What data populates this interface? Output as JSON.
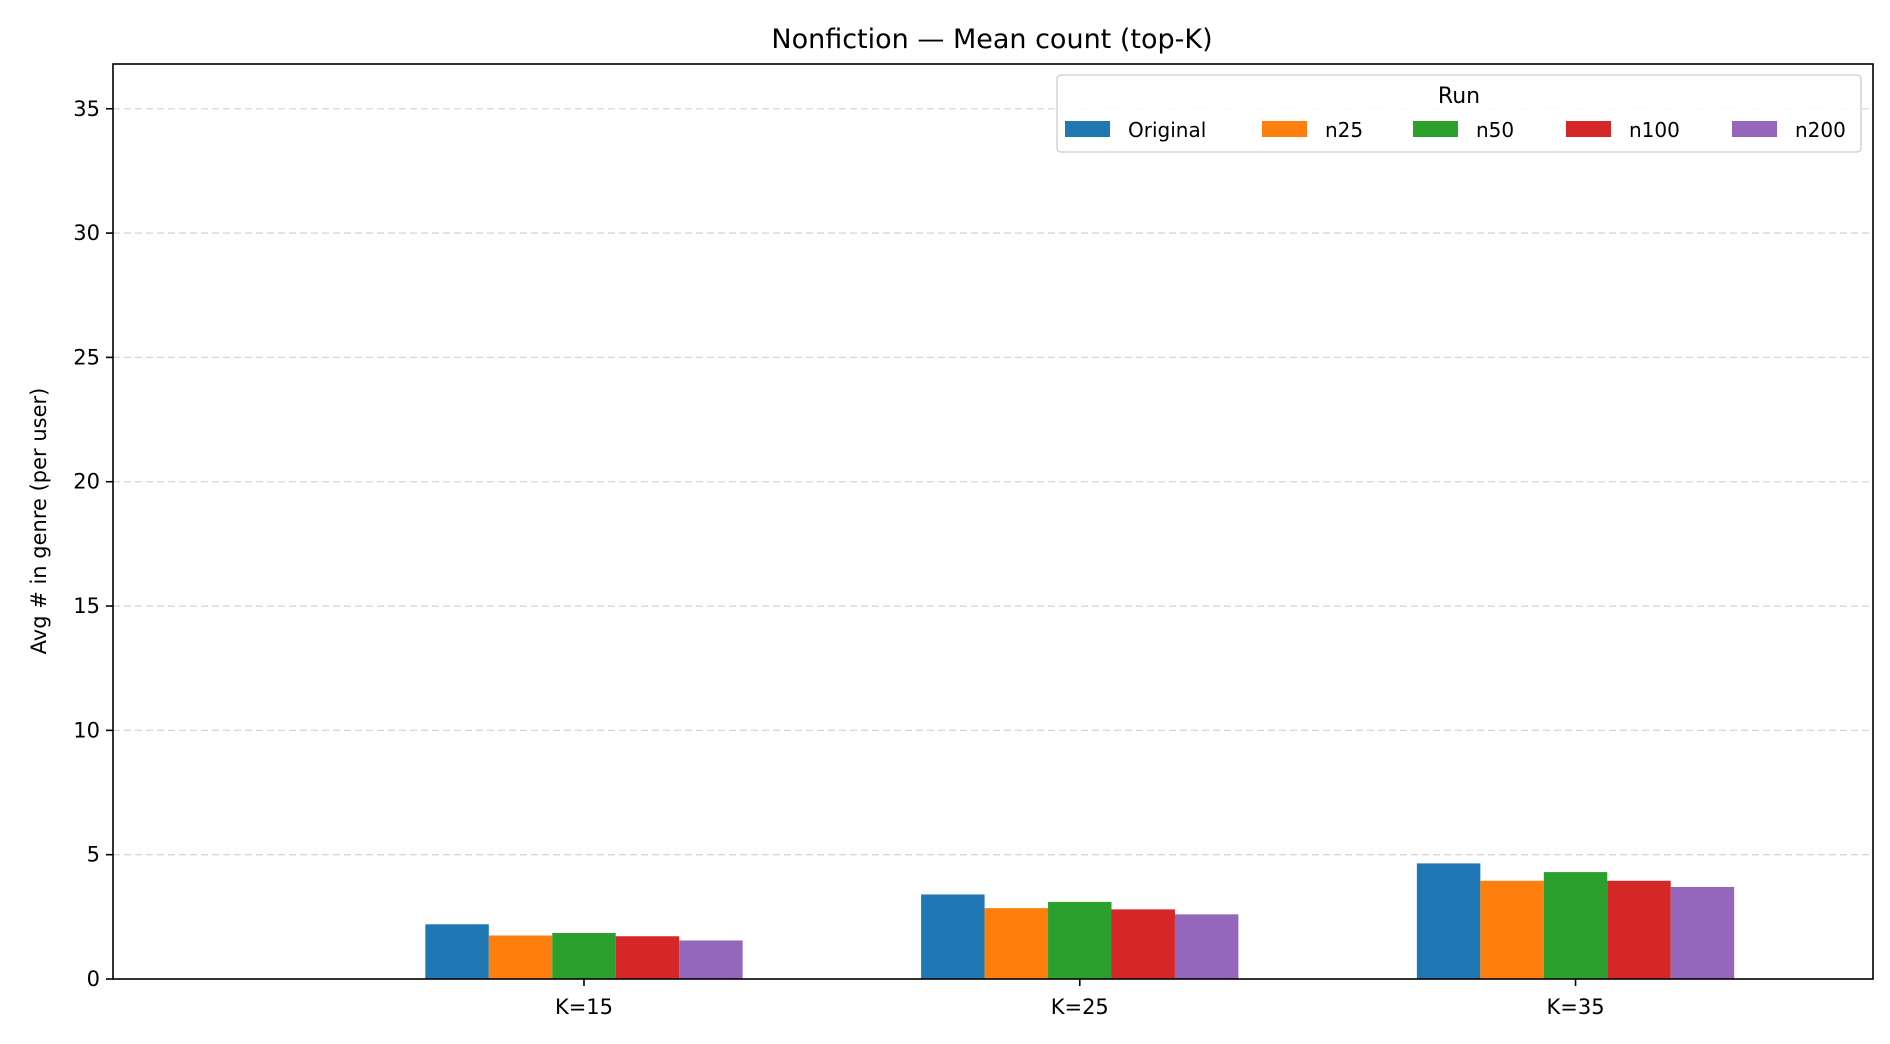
{
  "chart_data": {
    "type": "bar",
    "title": "Nonfiction — Mean count (top-K)",
    "xlabel": "",
    "ylabel": "Avg # in genre (per user)",
    "ylim": [
      0,
      36.8
    ],
    "yticks": [
      0,
      5,
      10,
      15,
      20,
      25,
      30,
      35
    ],
    "grid": "y-dashed",
    "categories": [
      "K=15",
      "K=25",
      "K=35"
    ],
    "legend": {
      "title": "Run",
      "placement": "top-right",
      "columns": 5
    },
    "series": [
      {
        "name": "Original",
        "color": "#1f77b4",
        "values": [
          2.2,
          3.4,
          4.65
        ]
      },
      {
        "name": "n25",
        "color": "#ff7f0e",
        "values": [
          1.75,
          2.85,
          3.95
        ]
      },
      {
        "name": "n50",
        "color": "#2ca02c",
        "values": [
          1.85,
          3.1,
          4.3
        ]
      },
      {
        "name": "n100",
        "color": "#d62728",
        "values": [
          1.72,
          2.8,
          3.95
        ]
      },
      {
        "name": "n200",
        "color": "#9467bd",
        "values": [
          1.55,
          2.6,
          3.7
        ]
      }
    ]
  }
}
